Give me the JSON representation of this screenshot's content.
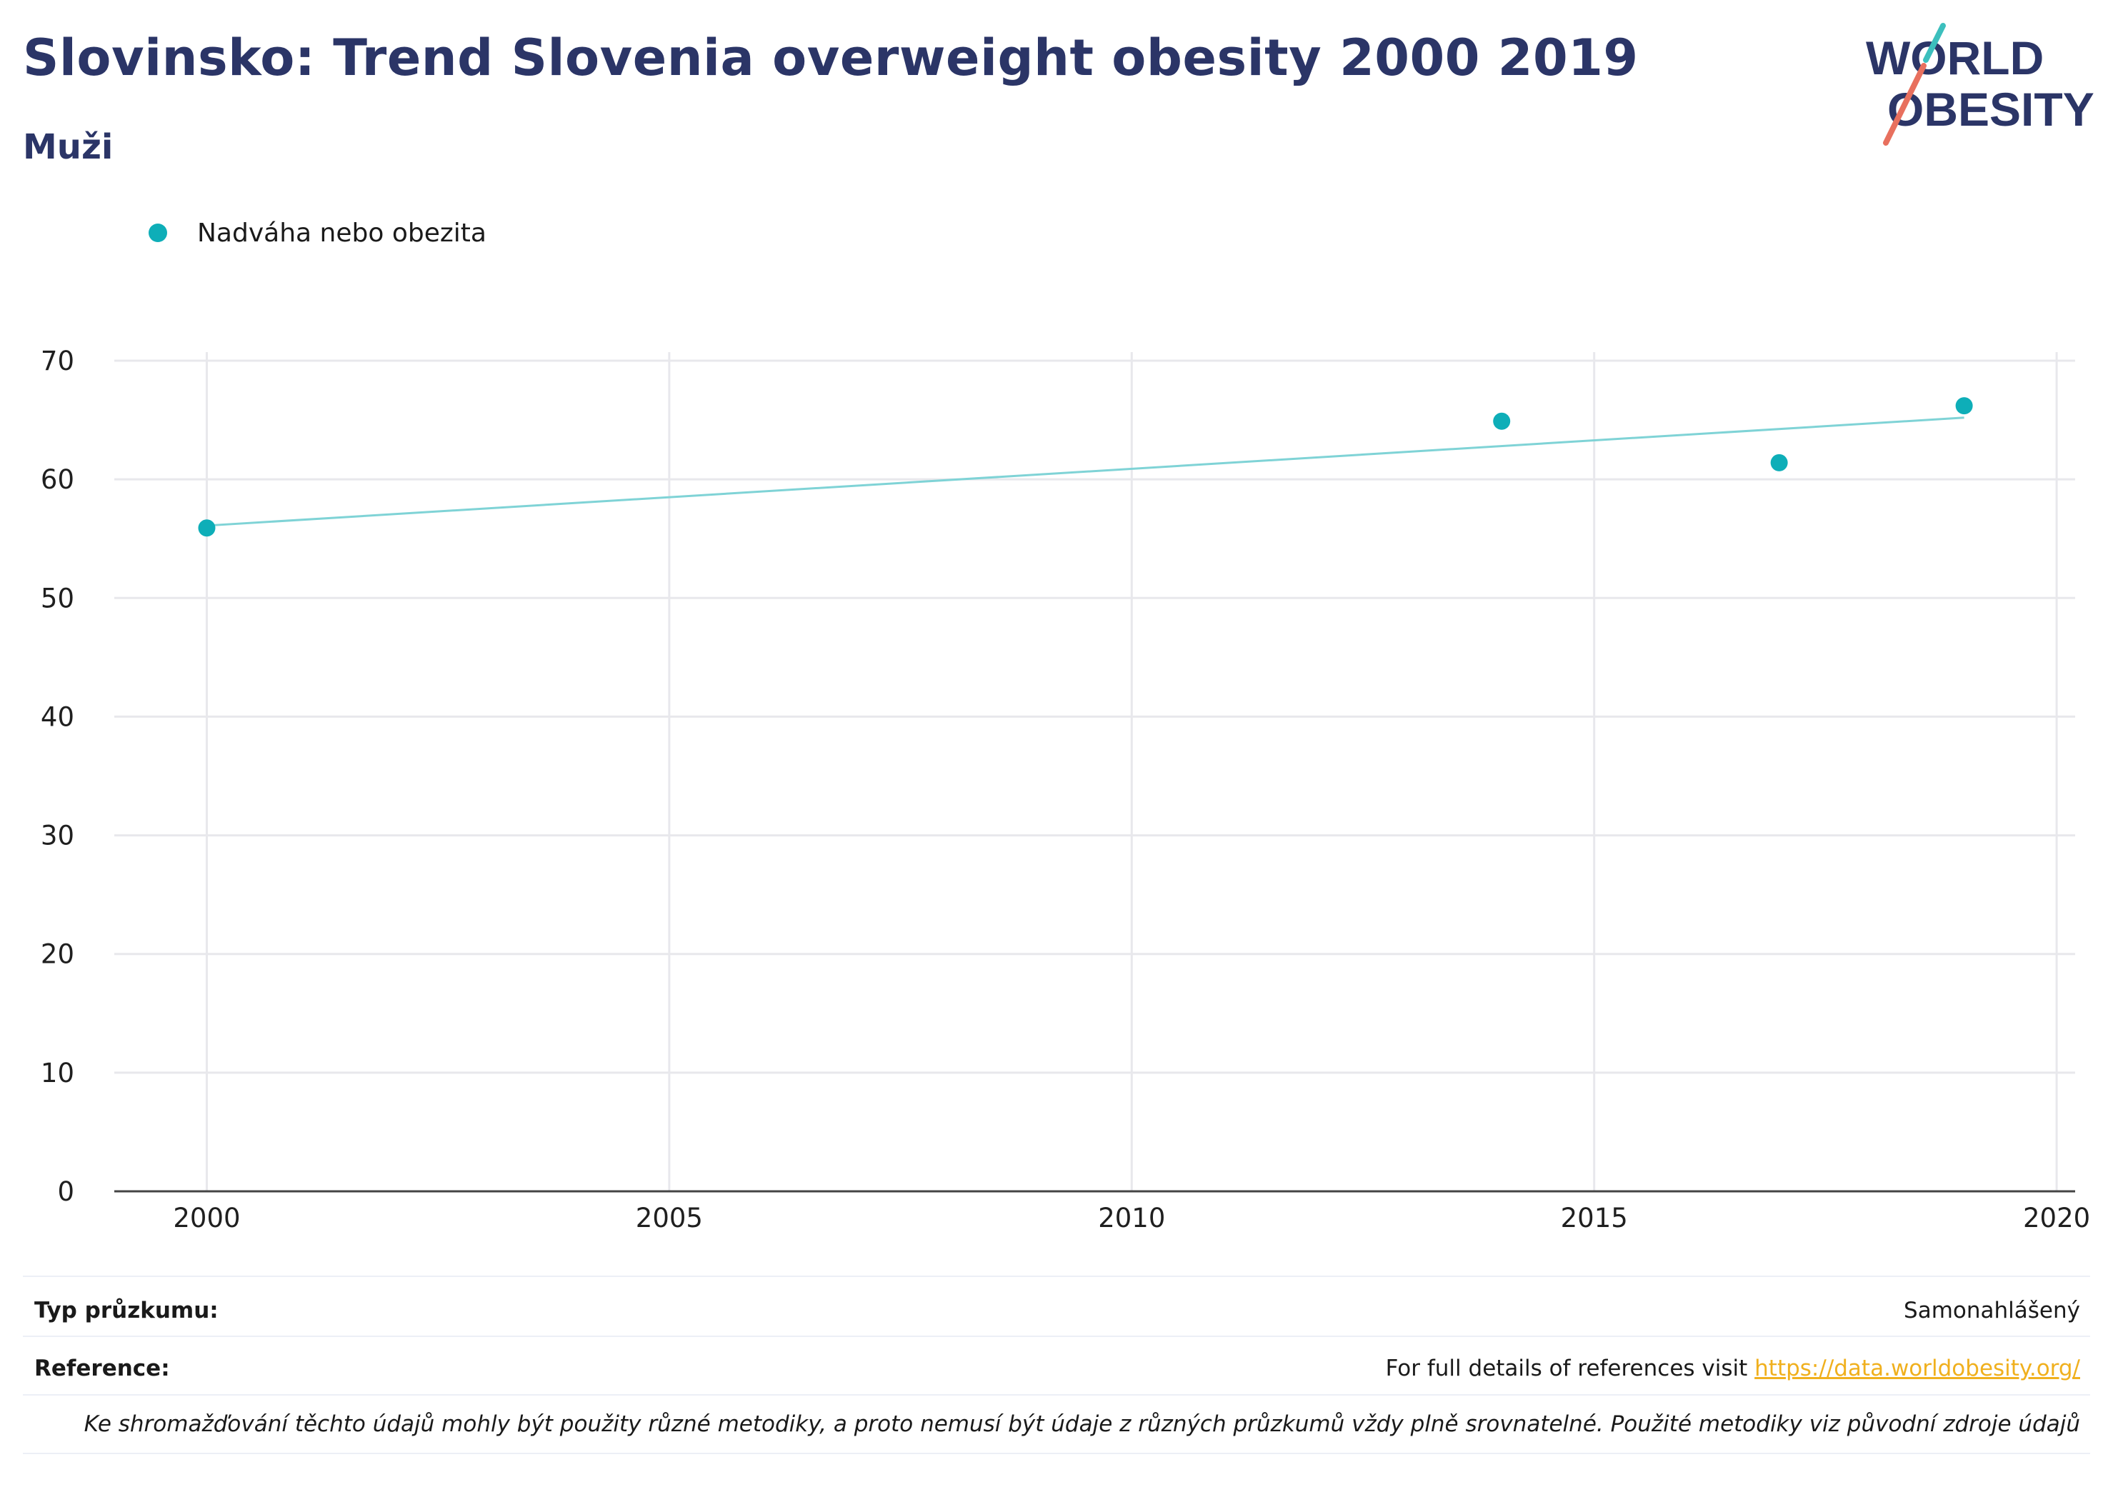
{
  "header": {
    "title": "Slovinsko: Trend Slovenia overweight obesity 2000 2019",
    "subtitle": "Muži"
  },
  "logo": {
    "line1": "WORLD",
    "line2": "OBESITY",
    "colors": {
      "text": "#2b3567",
      "teal": "#3cbfbd",
      "coral": "#e8705e"
    }
  },
  "colors": {
    "series": "#0eaeb8",
    "trend": "#7fd3d6",
    "grid": "#e8e8ec",
    "axis": "#444444",
    "link": "#f0b01e"
  },
  "chart_data": {
    "type": "scatter",
    "legend_position": "top-left",
    "grid": true,
    "xlim": [
      1999,
      2020.2
    ],
    "ylim": [
      0,
      70
    ],
    "x_ticks": [
      2000,
      2005,
      2010,
      2015,
      2020
    ],
    "y_ticks": [
      0,
      10,
      20,
      30,
      40,
      50,
      60,
      70
    ],
    "series": [
      {
        "name": "Nadváha nebo obezita",
        "points": [
          {
            "x": 2000,
            "y": 55.9
          },
          {
            "x": 2014,
            "y": 64.9
          },
          {
            "x": 2017,
            "y": 61.4
          },
          {
            "x": 2019,
            "y": 66.2
          }
        ],
        "trendline": {
          "x": [
            2000,
            2019
          ],
          "y": [
            56.1,
            65.2
          ]
        }
      }
    ]
  },
  "footer": {
    "survey_type_label": "Typ průzkumu:",
    "survey_type_value": "Samonahlášený",
    "reference_label": "Reference:",
    "reference_text": "For full details of references visit ",
    "reference_link": "https://data.worldobesity.org/",
    "note": "Ke shromažďování těchto údajů mohly být použity různé metodiky, a proto nemusí být údaje z různých průzkumů vždy plně srovnatelné. Použité metodiky viz původní zdroje údajů"
  }
}
